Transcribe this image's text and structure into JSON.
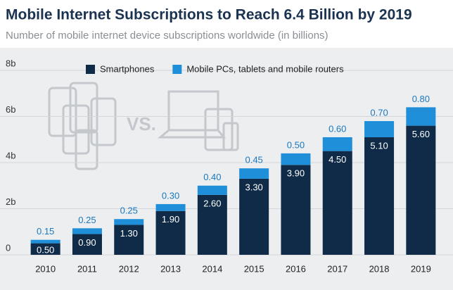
{
  "chart_data": {
    "type": "stacked_bar",
    "title": "Mobile Internet Subscriptions to Reach 6.4 Billion by 2019",
    "subtitle": "Number of mobile internet device subscriptions worldwide (in billions)",
    "annotation": "VS.",
    "categories": [
      "2010",
      "2011",
      "2012",
      "2013",
      "2014",
      "2015",
      "2016",
      "2017",
      "2018",
      "2019"
    ],
    "series": [
      {
        "name": "Smartphones",
        "color": "#0f2b47",
        "values": [
          0.5,
          0.9,
          1.3,
          1.9,
          2.6,
          3.3,
          3.9,
          4.5,
          5.1,
          5.6
        ],
        "value_labels": [
          "0.50",
          "0.90",
          "1.30",
          "1.90",
          "2.60",
          "3.30",
          "3.90",
          "4.50",
          "5.10",
          "5.60"
        ]
      },
      {
        "name": "Mobile PCs, tablets and mobile routers",
        "color": "#1e8fd8",
        "values": [
          0.15,
          0.25,
          0.25,
          0.3,
          0.4,
          0.45,
          0.5,
          0.6,
          0.7,
          0.8
        ],
        "value_labels": [
          "0.15",
          "0.25",
          "0.25",
          "0.30",
          "0.40",
          "0.45",
          "0.50",
          "0.60",
          "0.70",
          "0.80"
        ]
      }
    ],
    "ylim": [
      0,
      8
    ],
    "yticks": [
      0,
      {
        "value": 2,
        "label": "2b"
      },
      {
        "value": 4,
        "label": "4b"
      },
      {
        "value": 6,
        "label": "6b"
      },
      {
        "value": 8,
        "label": "8b"
      }
    ],
    "grid": true,
    "legend": "top"
  }
}
